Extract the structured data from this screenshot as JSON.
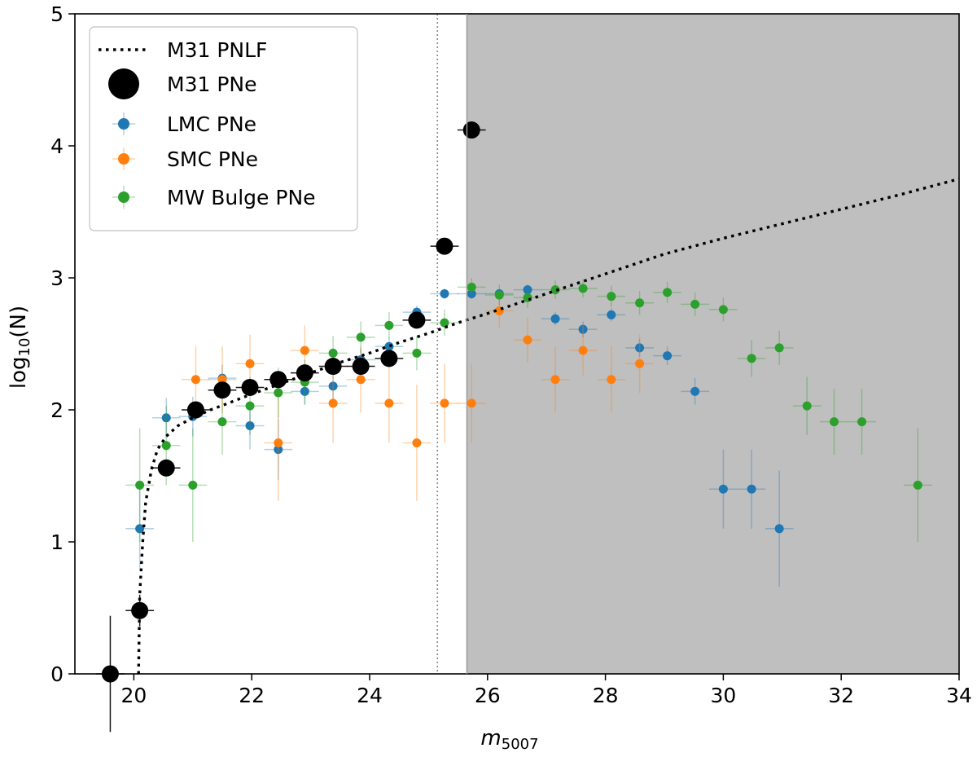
{
  "chart_data": {
    "type": "scatter",
    "xlabel": "m",
    "xlabel_sub": "5007",
    "ylabel": "log",
    "ylabel_sub": "10",
    "ylabel_suffix": "(N)",
    "xlim": [
      19,
      34
    ],
    "ylim": [
      0,
      5
    ],
    "xticks": [
      20,
      22,
      24,
      26,
      28,
      30,
      32,
      34
    ],
    "yticks": [
      0,
      1,
      2,
      3,
      4,
      5
    ],
    "grid": false,
    "legend_position": "top-left",
    "completeness_limit_line_x": 25.15,
    "shaded_region_start_x": 25.65,
    "colors": {
      "m31": "#000000",
      "lmc": "#1f77b4",
      "smc": "#ff7f0e",
      "mw": "#2ca02c",
      "shade": "#bfbfbf"
    },
    "series": [
      {
        "name": "M31 PNLF",
        "key": "pnlf",
        "style": "dotted-line",
        "x": [
          20.08,
          20.1,
          20.15,
          20.2,
          20.3,
          20.4,
          20.55,
          20.75,
          21.0,
          21.3,
          21.6,
          22.0,
          22.5,
          23.0,
          23.5,
          24.0,
          24.5,
          25.0,
          25.5,
          26.0,
          27.0,
          28.0,
          29.0,
          30.0,
          31.0,
          32.0,
          33.0,
          34.0
        ],
        "y": [
          0.0,
          0.6,
          1.0,
          1.3,
          1.55,
          1.7,
          1.8,
          1.88,
          1.94,
          2.0,
          2.05,
          2.12,
          2.2,
          2.28,
          2.36,
          2.43,
          2.51,
          2.58,
          2.66,
          2.73,
          2.88,
          3.03,
          3.18,
          3.3,
          3.41,
          3.52,
          3.63,
          3.75
        ]
      },
      {
        "name": "M31 PNe",
        "key": "m31",
        "style": "big-marker",
        "x": [
          19.6,
          20.1,
          20.55,
          21.05,
          21.5,
          21.97,
          22.45,
          22.9,
          23.38,
          23.85,
          24.33,
          24.8,
          25.27,
          25.73
        ],
        "y": [
          0.0,
          0.48,
          1.56,
          2.0,
          2.15,
          2.17,
          2.23,
          2.28,
          2.33,
          2.33,
          2.39,
          2.68,
          3.24,
          4.12
        ],
        "yerr": [
          0.44,
          0.12,
          0.04,
          0.03,
          0.03,
          0.03,
          0.03,
          0.03,
          0.03,
          0.03,
          0.03,
          0.03,
          0.02,
          0.01
        ]
      },
      {
        "name": "LMC PNe",
        "key": "lmc",
        "style": "marker",
        "x": [
          20.1,
          20.55,
          21.0,
          21.5,
          21.97,
          22.45,
          22.9,
          23.38,
          23.85,
          24.33,
          24.8,
          25.27,
          25.73,
          26.2,
          26.68,
          27.15,
          27.62,
          28.1,
          28.58,
          29.05,
          29.52,
          30.0,
          30.48,
          30.95
        ],
        "y": [
          1.1,
          1.94,
          1.95,
          2.24,
          1.88,
          1.7,
          2.14,
          2.18,
          2.38,
          2.48,
          2.74,
          2.88,
          2.88,
          2.88,
          2.91,
          2.69,
          2.61,
          2.72,
          2.47,
          2.41,
          2.14,
          1.4,
          1.4,
          1.1
        ],
        "yerr": [
          0.3,
          0.15,
          0.15,
          0.1,
          0.18,
          0.23,
          0.1,
          0.1,
          0.08,
          0.07,
          0.05,
          0.04,
          0.04,
          0.04,
          0.04,
          0.05,
          0.06,
          0.05,
          0.07,
          0.07,
          0.1,
          0.3,
          0.3,
          0.44
        ]
      },
      {
        "name": "SMC PNe",
        "key": "smc",
        "style": "marker",
        "x": [
          21.05,
          21.5,
          21.97,
          22.45,
          22.9,
          23.38,
          23.85,
          24.33,
          24.8,
          25.27,
          25.73,
          26.2,
          26.68,
          27.15,
          27.62,
          28.1,
          28.58
        ],
        "y": [
          2.23,
          2.23,
          2.35,
          1.75,
          2.45,
          2.05,
          2.23,
          2.05,
          1.75,
          2.05,
          2.05,
          2.75,
          2.53,
          2.23,
          2.45,
          2.23,
          2.35
        ],
        "yerr": [
          0.25,
          0.25,
          0.22,
          0.44,
          0.19,
          0.3,
          0.25,
          0.3,
          0.44,
          0.3,
          0.3,
          0.13,
          0.17,
          0.25,
          0.19,
          0.25,
          0.22
        ]
      },
      {
        "name": "MW Bulge PNe",
        "key": "mw",
        "style": "marker",
        "x": [
          20.1,
          20.55,
          21.0,
          21.5,
          21.97,
          22.45,
          22.9,
          23.38,
          23.85,
          24.33,
          24.8,
          25.27,
          25.73,
          26.2,
          26.68,
          27.15,
          27.62,
          28.1,
          28.58,
          29.05,
          29.52,
          30.0,
          30.48,
          30.95,
          31.42,
          31.88,
          32.35,
          33.3
        ],
        "y": [
          1.43,
          1.73,
          1.43,
          1.91,
          2.03,
          2.13,
          2.21,
          2.43,
          2.55,
          2.64,
          2.43,
          2.66,
          2.93,
          2.87,
          2.85,
          2.91,
          2.92,
          2.86,
          2.81,
          2.89,
          2.8,
          2.76,
          2.39,
          2.47,
          2.03,
          1.91,
          1.91,
          1.43
        ],
        "yerr": [
          0.43,
          0.3,
          0.43,
          0.25,
          0.22,
          0.19,
          0.17,
          0.13,
          0.12,
          0.1,
          0.13,
          0.1,
          0.07,
          0.08,
          0.08,
          0.07,
          0.07,
          0.08,
          0.09,
          0.08,
          0.09,
          0.09,
          0.14,
          0.13,
          0.22,
          0.25,
          0.25,
          0.43
        ]
      }
    ]
  }
}
